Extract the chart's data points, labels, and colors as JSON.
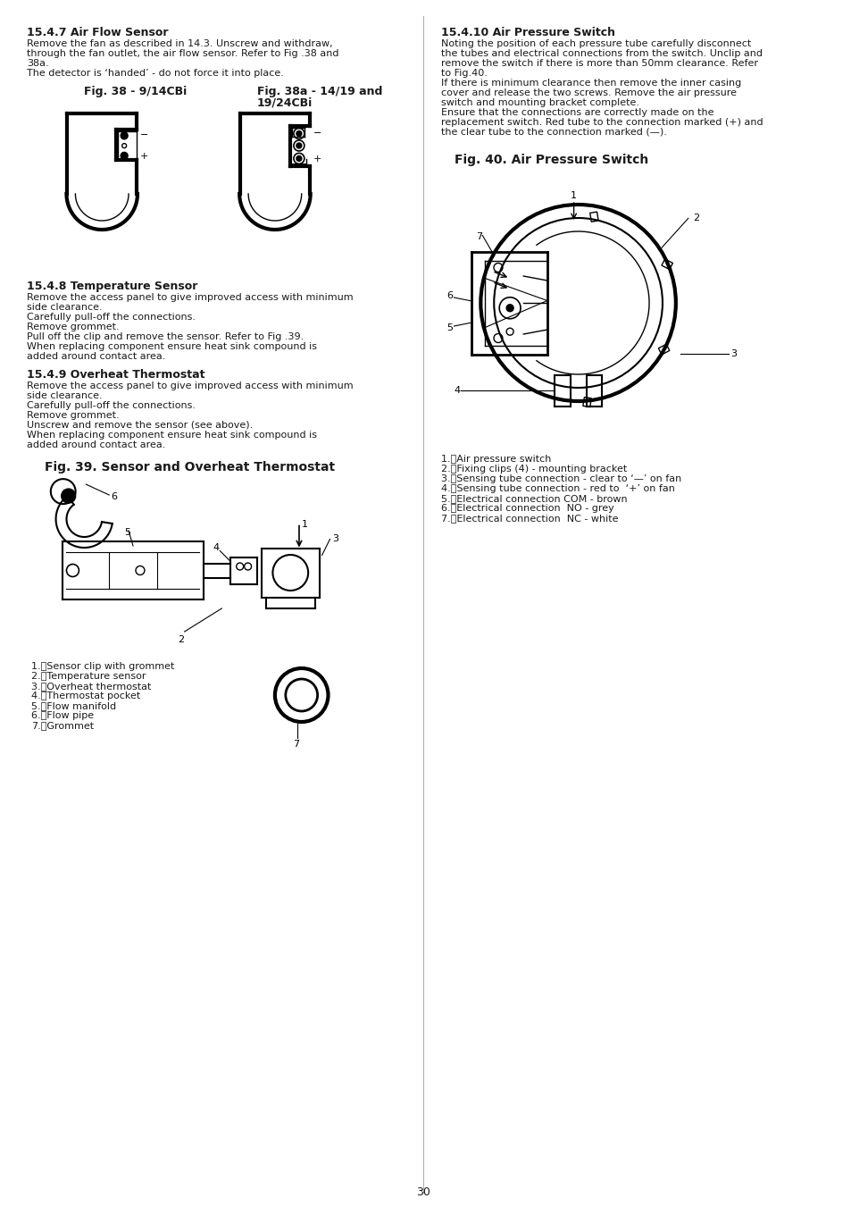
{
  "page_bg": "#ffffff",
  "text_color": "#1a1a1a",
  "page_number": "30",
  "left_column": {
    "section_1_title": "15.4.7 Air Flow Sensor",
    "section_1_body": [
      "Remove the fan as described in 14.3. Unscrew and withdraw,",
      "through the fan outlet, the air flow sensor. Refer to Fig .38 and",
      "38a.",
      "The detector is ‘handed’ - do not force it into place."
    ],
    "fig38_title": "Fig. 38 - 9/14CBi",
    "fig38a_title": "Fig. 38a - 14/19 and",
    "fig38a_title2": "19/24CBi",
    "section_2_title": "15.4.8 Temperature Sensor",
    "section_2_body": [
      "Remove the access panel to give improved access with minimum",
      "side clearance.",
      "Carefully pull-off the connections.",
      "Remove grommet.",
      "Pull off the clip and remove the sensor. Refer to Fig .39.",
      "When replacing component ensure heat sink compound is",
      "added around contact area."
    ],
    "section_3_title": "15.4.9 Overheat Thermostat",
    "section_3_body": [
      "Remove the access panel to give improved access with minimum",
      "side clearance.",
      "Carefully pull-off the connections.",
      "Remove grommet.",
      "Unscrew and remove the sensor (see above).",
      "When replacing component ensure heat sink compound is",
      "added around contact area."
    ],
    "fig39_title": "Fig. 39. Sensor and Overheat Thermostat",
    "fig39_legend": [
      "1.\tSensor clip with grommet",
      "2.\tTemperature sensor",
      "3.\tOverheat thermostat",
      "4.\tThermostat pocket",
      "5.\tFlow manifold",
      "6.\tFlow pipe",
      "7.\tGrommet"
    ]
  },
  "right_column": {
    "section_title": "15.4.10 Air Pressure Switch",
    "section_body": [
      "Noting the position of each pressure tube carefully disconnect",
      "the tubes and electrical connections from the switch. Unclip and",
      "remove the switch if there is more than 50mm clearance. Refer",
      "to Fig.40.",
      "If there is minimum clearance then remove the inner casing",
      "cover and release the two screws. Remove the air pressure",
      "switch and mounting bracket complete.",
      "Ensure that the connections are correctly made on the",
      "replacement switch. Red tube to the connection marked (+) and",
      "the clear tube to the connection marked (—)."
    ],
    "fig40_title": "Fig. 40. Air Pressure Switch",
    "fig40_legend": [
      "1.\tAir pressure switch",
      "2.\tFixing clips (4) - mounting bracket",
      "3.\tSensing tube connection - clear to ‘—’ on fan",
      "4.\tSensing tube connection - red to  ‘+’ on fan",
      "5.\tElectrical connection COM - brown",
      "6.\tElectrical connection  NO - grey",
      "7.\tElectrical connection  NC - white"
    ]
  }
}
